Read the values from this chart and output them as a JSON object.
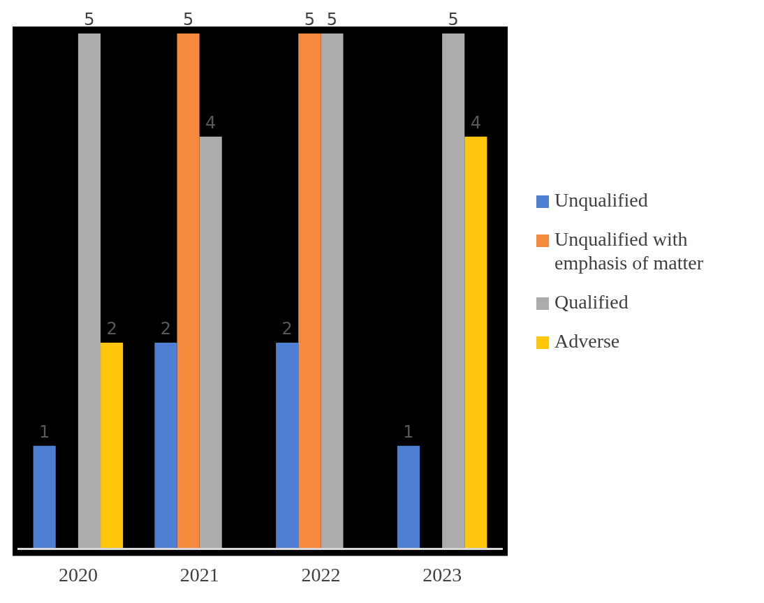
{
  "chart_data": {
    "type": "bar",
    "categories": [
      "2020",
      "2021",
      "2022",
      "2023"
    ],
    "series": [
      {
        "name": "Unqualified",
        "color": "#4f7fd3",
        "values": [
          1,
          2,
          2,
          1
        ]
      },
      {
        "name": "Unqualified with emphasis of matter",
        "color": "#f58a3c",
        "values": [
          null,
          5,
          5,
          null
        ]
      },
      {
        "name": "Qualified",
        "color": "#acacac",
        "values": [
          5,
          4,
          5,
          5
        ]
      },
      {
        "name": "Adverse",
        "color": "#ffc60b",
        "values": [
          2,
          null,
          null,
          4
        ]
      }
    ],
    "ylim": [
      0,
      5
    ],
    "tick_labels": "x",
    "data_labels": true,
    "grid": false,
    "legend": "right"
  }
}
